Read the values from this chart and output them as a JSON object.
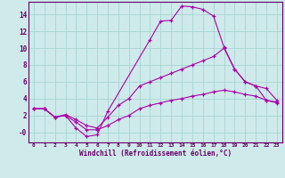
{
  "xlabel": "Windchill (Refroidissement éolien,°C)",
  "bg_color": "#ceeaea",
  "line_color": "#aa00aa",
  "grid_color": "#a8d4d4",
  "axis_color": "#660066",
  "text_color": "#660066",
  "xlim": [
    -0.5,
    23.5
  ],
  "ylim": [
    -1.2,
    15.5
  ],
  "xticks": [
    0,
    1,
    2,
    3,
    4,
    5,
    6,
    7,
    8,
    9,
    10,
    11,
    12,
    13,
    14,
    15,
    16,
    17,
    18,
    19,
    20,
    21,
    22,
    23
  ],
  "yticks": [
    0,
    2,
    4,
    6,
    8,
    10,
    12,
    14
  ],
  "ytick_labels": [
    "-0",
    "2",
    "4",
    "6",
    "8",
    "10",
    "12",
    "14"
  ],
  "line1_x": [
    0,
    1,
    2,
    3,
    4,
    5,
    6,
    7,
    11,
    12,
    13,
    14,
    15,
    16,
    17,
    18,
    19,
    20,
    21,
    22,
    23
  ],
  "line1_y": [
    2.8,
    2.8,
    1.8,
    2.0,
    0.5,
    -0.5,
    -0.3,
    2.5,
    11.0,
    13.2,
    13.3,
    15.0,
    14.9,
    14.6,
    13.8,
    10.1,
    7.5,
    6.0,
    5.5,
    3.8,
    3.6
  ],
  "line2_x": [
    0,
    1,
    2,
    3,
    4,
    5,
    6,
    7,
    8,
    9,
    10,
    11,
    12,
    13,
    14,
    15,
    16,
    17,
    18,
    19,
    20,
    21,
    22,
    23
  ],
  "line2_y": [
    2.8,
    2.8,
    1.8,
    2.1,
    1.5,
    0.8,
    0.5,
    1.8,
    3.2,
    4.0,
    5.5,
    6.0,
    6.5,
    7.0,
    7.5,
    8.0,
    8.5,
    9.0,
    10.0,
    7.5,
    6.0,
    5.5,
    5.2,
    3.8
  ],
  "line3_x": [
    0,
    1,
    2,
    3,
    4,
    5,
    6,
    7,
    8,
    9,
    10,
    11,
    12,
    13,
    14,
    15,
    16,
    17,
    18,
    19,
    20,
    21,
    22,
    23
  ],
  "line3_y": [
    2.8,
    2.8,
    1.8,
    2.0,
    1.2,
    0.3,
    0.3,
    0.8,
    1.5,
    2.0,
    2.8,
    3.2,
    3.5,
    3.8,
    4.0,
    4.3,
    4.5,
    4.8,
    5.0,
    4.8,
    4.5,
    4.3,
    3.8,
    3.5
  ]
}
